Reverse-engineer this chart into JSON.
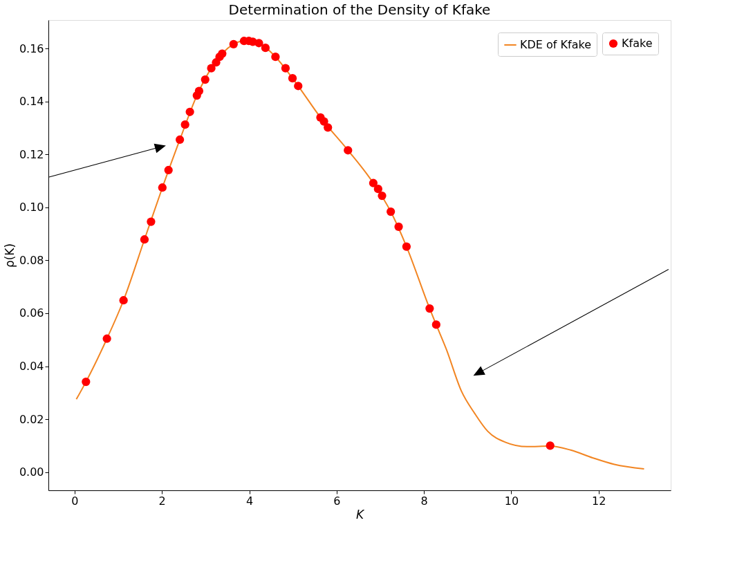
{
  "chart_data": {
    "type": "scatter",
    "title": "Determination of the Density of Kfake",
    "xlabel": "K",
    "ylabel": "ρ(K)",
    "xlim": [
      -0.6,
      13.65
    ],
    "ylim": [
      -0.0069,
      0.1708
    ],
    "xticks": [
      0,
      2,
      4,
      6,
      8,
      10,
      12
    ],
    "yticks": [
      {
        "value": 0,
        "label": "0.00"
      },
      0.02,
      0.04,
      0.06,
      0.08,
      {
        "value": 0.1,
        "label": "0.10"
      },
      0.12,
      0.14,
      0.16
    ],
    "grid": false,
    "legend": "top right",
    "series": [
      {
        "name": "KDE of Kfake",
        "type": "line",
        "color": "#f28522",
        "line_style": "solid",
        "x": [
          0.04,
          0.26,
          0.74,
          1.12,
          1.6,
          2.01,
          2.41,
          2.8,
          3.13,
          3.38,
          3.64,
          3.93,
          4.22,
          4.6,
          4.99,
          5.12,
          5.63,
          6.26,
          6.84,
          7.24,
          7.6,
          8.13,
          8.28,
          8.51,
          8.86,
          9.16,
          9.46,
          9.86,
          10.36,
          10.89,
          11.36,
          11.86,
          12.36,
          13.04
        ],
        "values": [
          0.0275,
          0.0341,
          0.0504,
          0.0649,
          0.0879,
          0.1075,
          0.1256,
          0.1423,
          0.1526,
          0.1581,
          0.1617,
          0.163,
          0.1621,
          0.1569,
          0.1488,
          0.1459,
          0.134,
          0.1216,
          0.1092,
          0.0984,
          0.0852,
          0.0618,
          0.0557,
          0.0465,
          0.0305,
          0.0222,
          0.0154,
          0.0113,
          0.0096,
          0.0098,
          0.0083,
          0.0054,
          0.0029,
          0.0012
        ]
      },
      {
        "name": "Kfake",
        "type": "scatter",
        "color": "#ff0000",
        "marker": "circle",
        "x": [
          0.26,
          0.74,
          1.12,
          1.6,
          1.75,
          2.01,
          2.15,
          2.41,
          2.53,
          2.64,
          2.8,
          2.85,
          2.99,
          3.13,
          3.24,
          3.32,
          3.38,
          3.64,
          3.88,
          3.99,
          4.08,
          4.22,
          4.37,
          4.6,
          4.83,
          4.99,
          5.12,
          5.63,
          5.71,
          5.8,
          6.26,
          6.84,
          6.95,
          7.04,
          7.24,
          7.42,
          7.6,
          8.13,
          8.28,
          10.89
        ],
        "values": [
          0.0341,
          0.0504,
          0.0649,
          0.0879,
          0.0946,
          0.1075,
          0.1141,
          0.1256,
          0.1313,
          0.1361,
          0.1423,
          0.144,
          0.1483,
          0.1526,
          0.1548,
          0.1569,
          0.1581,
          0.1617,
          0.1629,
          0.1629,
          0.1626,
          0.1621,
          0.1603,
          0.1569,
          0.1526,
          0.1488,
          0.1459,
          0.134,
          0.1325,
          0.1302,
          0.1216,
          0.1092,
          0.107,
          0.1044,
          0.0984,
          0.0927,
          0.0852,
          0.0618,
          0.0557,
          0.01
        ]
      }
    ]
  }
}
